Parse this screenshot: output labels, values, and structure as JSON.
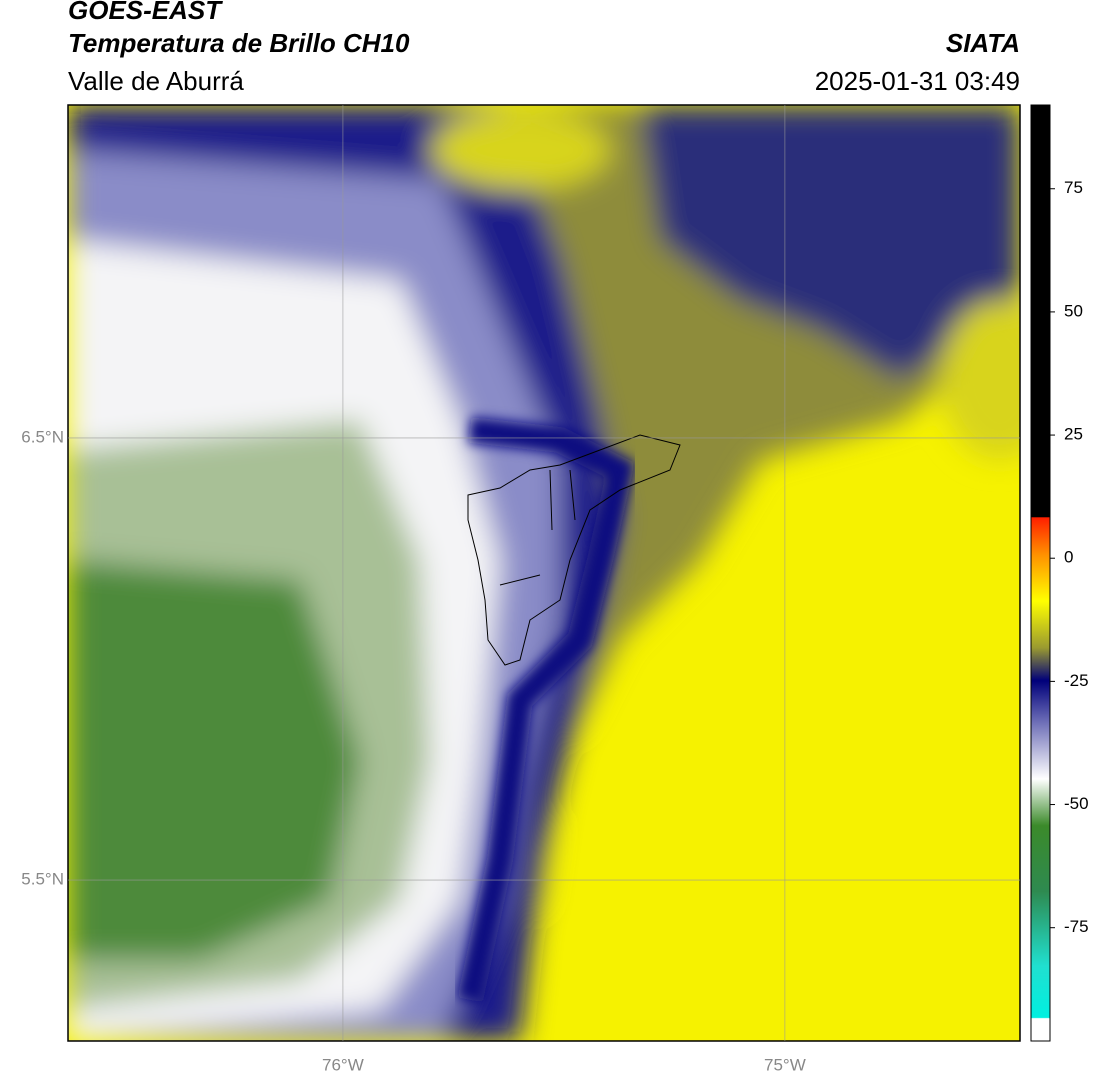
{
  "header": {
    "line1": "GOES-EAST",
    "line2": "Temperatura de Brillo CH10",
    "line3": "Valle de Aburrá",
    "source": "SIATA",
    "datetime": "2025-01-31 03:49"
  },
  "map": {
    "lonlim": [
      -76.622,
      -74.468
    ],
    "latlim": [
      5.136,
      7.253
    ],
    "lon_ticks": [
      {
        "value": -76,
        "label": "76°W"
      },
      {
        "value": -75,
        "label": "75°W"
      }
    ],
    "lat_ticks": [
      {
        "value": 6.5,
        "label": "6.5°N"
      },
      {
        "value": 5.5,
        "label": "5.5°N"
      }
    ]
  },
  "colorbar": {
    "lim": [
      -98,
      92
    ],
    "ticks": [
      75,
      50,
      25,
      0,
      -25,
      -50,
      -75
    ]
  }
}
